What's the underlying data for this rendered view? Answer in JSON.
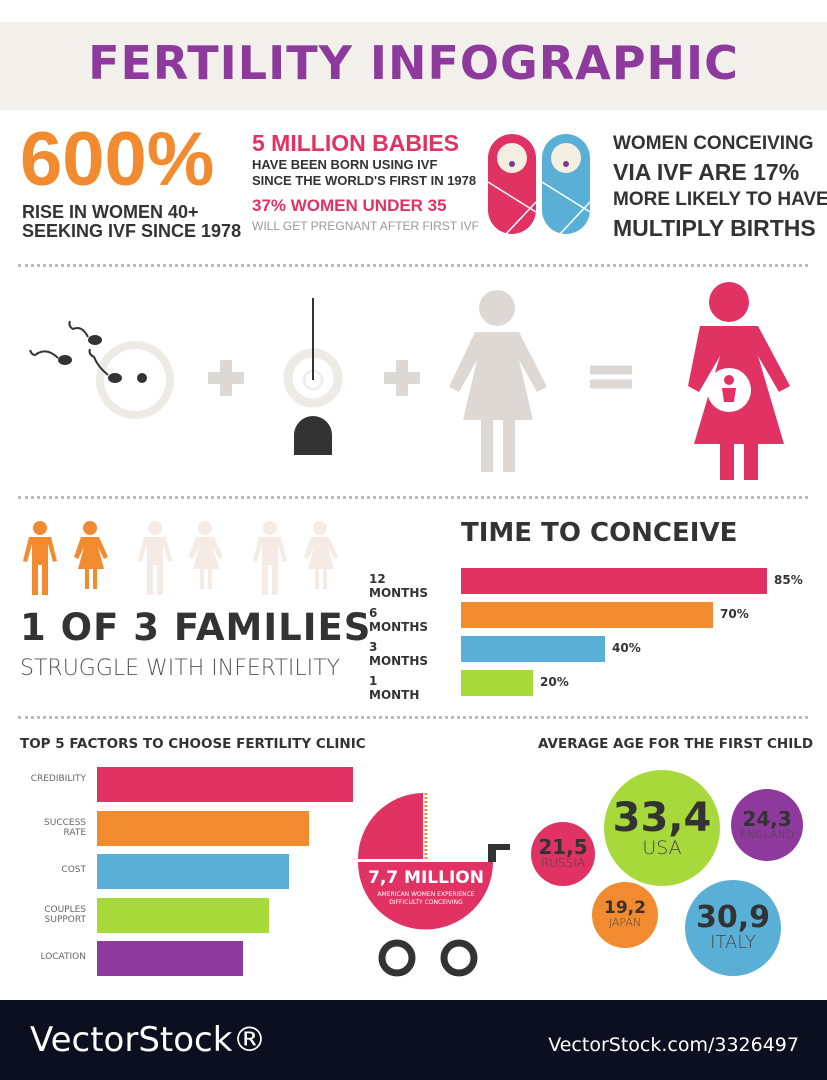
{
  "title": "FERTILITY INFOGRAPHIC",
  "stats": {
    "big": "600%",
    "big_sub1": "RISE IN WOMEN 40+",
    "big_sub2": "SEEKING IVF SINCE 1978",
    "babies": "5 MILLION BABIES",
    "babies_sub1": "HAVE BEEN BORN USING IVF",
    "babies_sub2": "SINCE THE WORLD'S FIRST IN 1978",
    "women": "37% WOMEN UNDER 35",
    "women_sub": "WILL GET PREGNANT AFTER FIRST IVF",
    "multi1": "WOMEN CONCEIVING",
    "multi2": "VIA IVF ARE 17%",
    "multi3": "MORE LIKELY TO HAVE",
    "multi4": "MULTIPLY BIRTHS"
  },
  "families": {
    "headline": "1 OF 3 FAMILIES",
    "sub": "STRUGGLE WITH INFERTILITY"
  },
  "stroller": {
    "value": "7,7 MILLION",
    "sub1": "AMERICAN WOMEN EXPERIENCE",
    "sub2": "DIFFICULTY CONCEIVING"
  },
  "colors": {
    "pink": "#e03363",
    "orange": "#f28a30",
    "blue": "#5aafd6",
    "green": "#a8d93a",
    "purple": "#8e3a9d",
    "dark": "#333333",
    "beige": "#e8e4e0"
  },
  "chart_data": [
    {
      "type": "bar",
      "title": "TIME TO CONCEIVE",
      "categories": [
        "12 MONTHS",
        "6 MONTHS",
        "3 MONTHS",
        "1 MONTH"
      ],
      "values": [
        85,
        70,
        40,
        20
      ],
      "labels": [
        "85%",
        "70%",
        "40%",
        "20%"
      ],
      "colors": [
        "#e03363",
        "#f28a30",
        "#5aafd6",
        "#a8d93a"
      ],
      "orientation": "horizontal"
    },
    {
      "type": "bar",
      "title": "TOP 5 FACTORS TO CHOOSE FERTILITY CLINIC",
      "categories": [
        "CREDIBILITY",
        "SUCCESS RATE",
        "COST",
        "COUPLES SUPPORT",
        "LOCATION"
      ],
      "values": [
        100,
        83,
        75,
        67,
        57
      ],
      "colors": [
        "#e03363",
        "#f28a30",
        "#5aafd6",
        "#a8d93a",
        "#8e3a9d"
      ],
      "orientation": "horizontal"
    },
    {
      "type": "scatter",
      "title": "AVERAGE AGE FOR THE FIRST CHILD",
      "points": [
        {
          "country": "RUSSIA",
          "value": "21,5",
          "color": "#e03363"
        },
        {
          "country": "USA",
          "value": "33,4",
          "color": "#a8d93a"
        },
        {
          "country": "ENGLAND",
          "value": "24,3",
          "color": "#8e3a9d"
        },
        {
          "country": "JAPAN",
          "value": "19,2",
          "color": "#f28a30"
        },
        {
          "country": "ITALY",
          "value": "30,9",
          "color": "#5aafd6"
        }
      ]
    }
  ],
  "footer": {
    "brand": "VectorStock®",
    "id": "VectorStock.com/3326497"
  }
}
